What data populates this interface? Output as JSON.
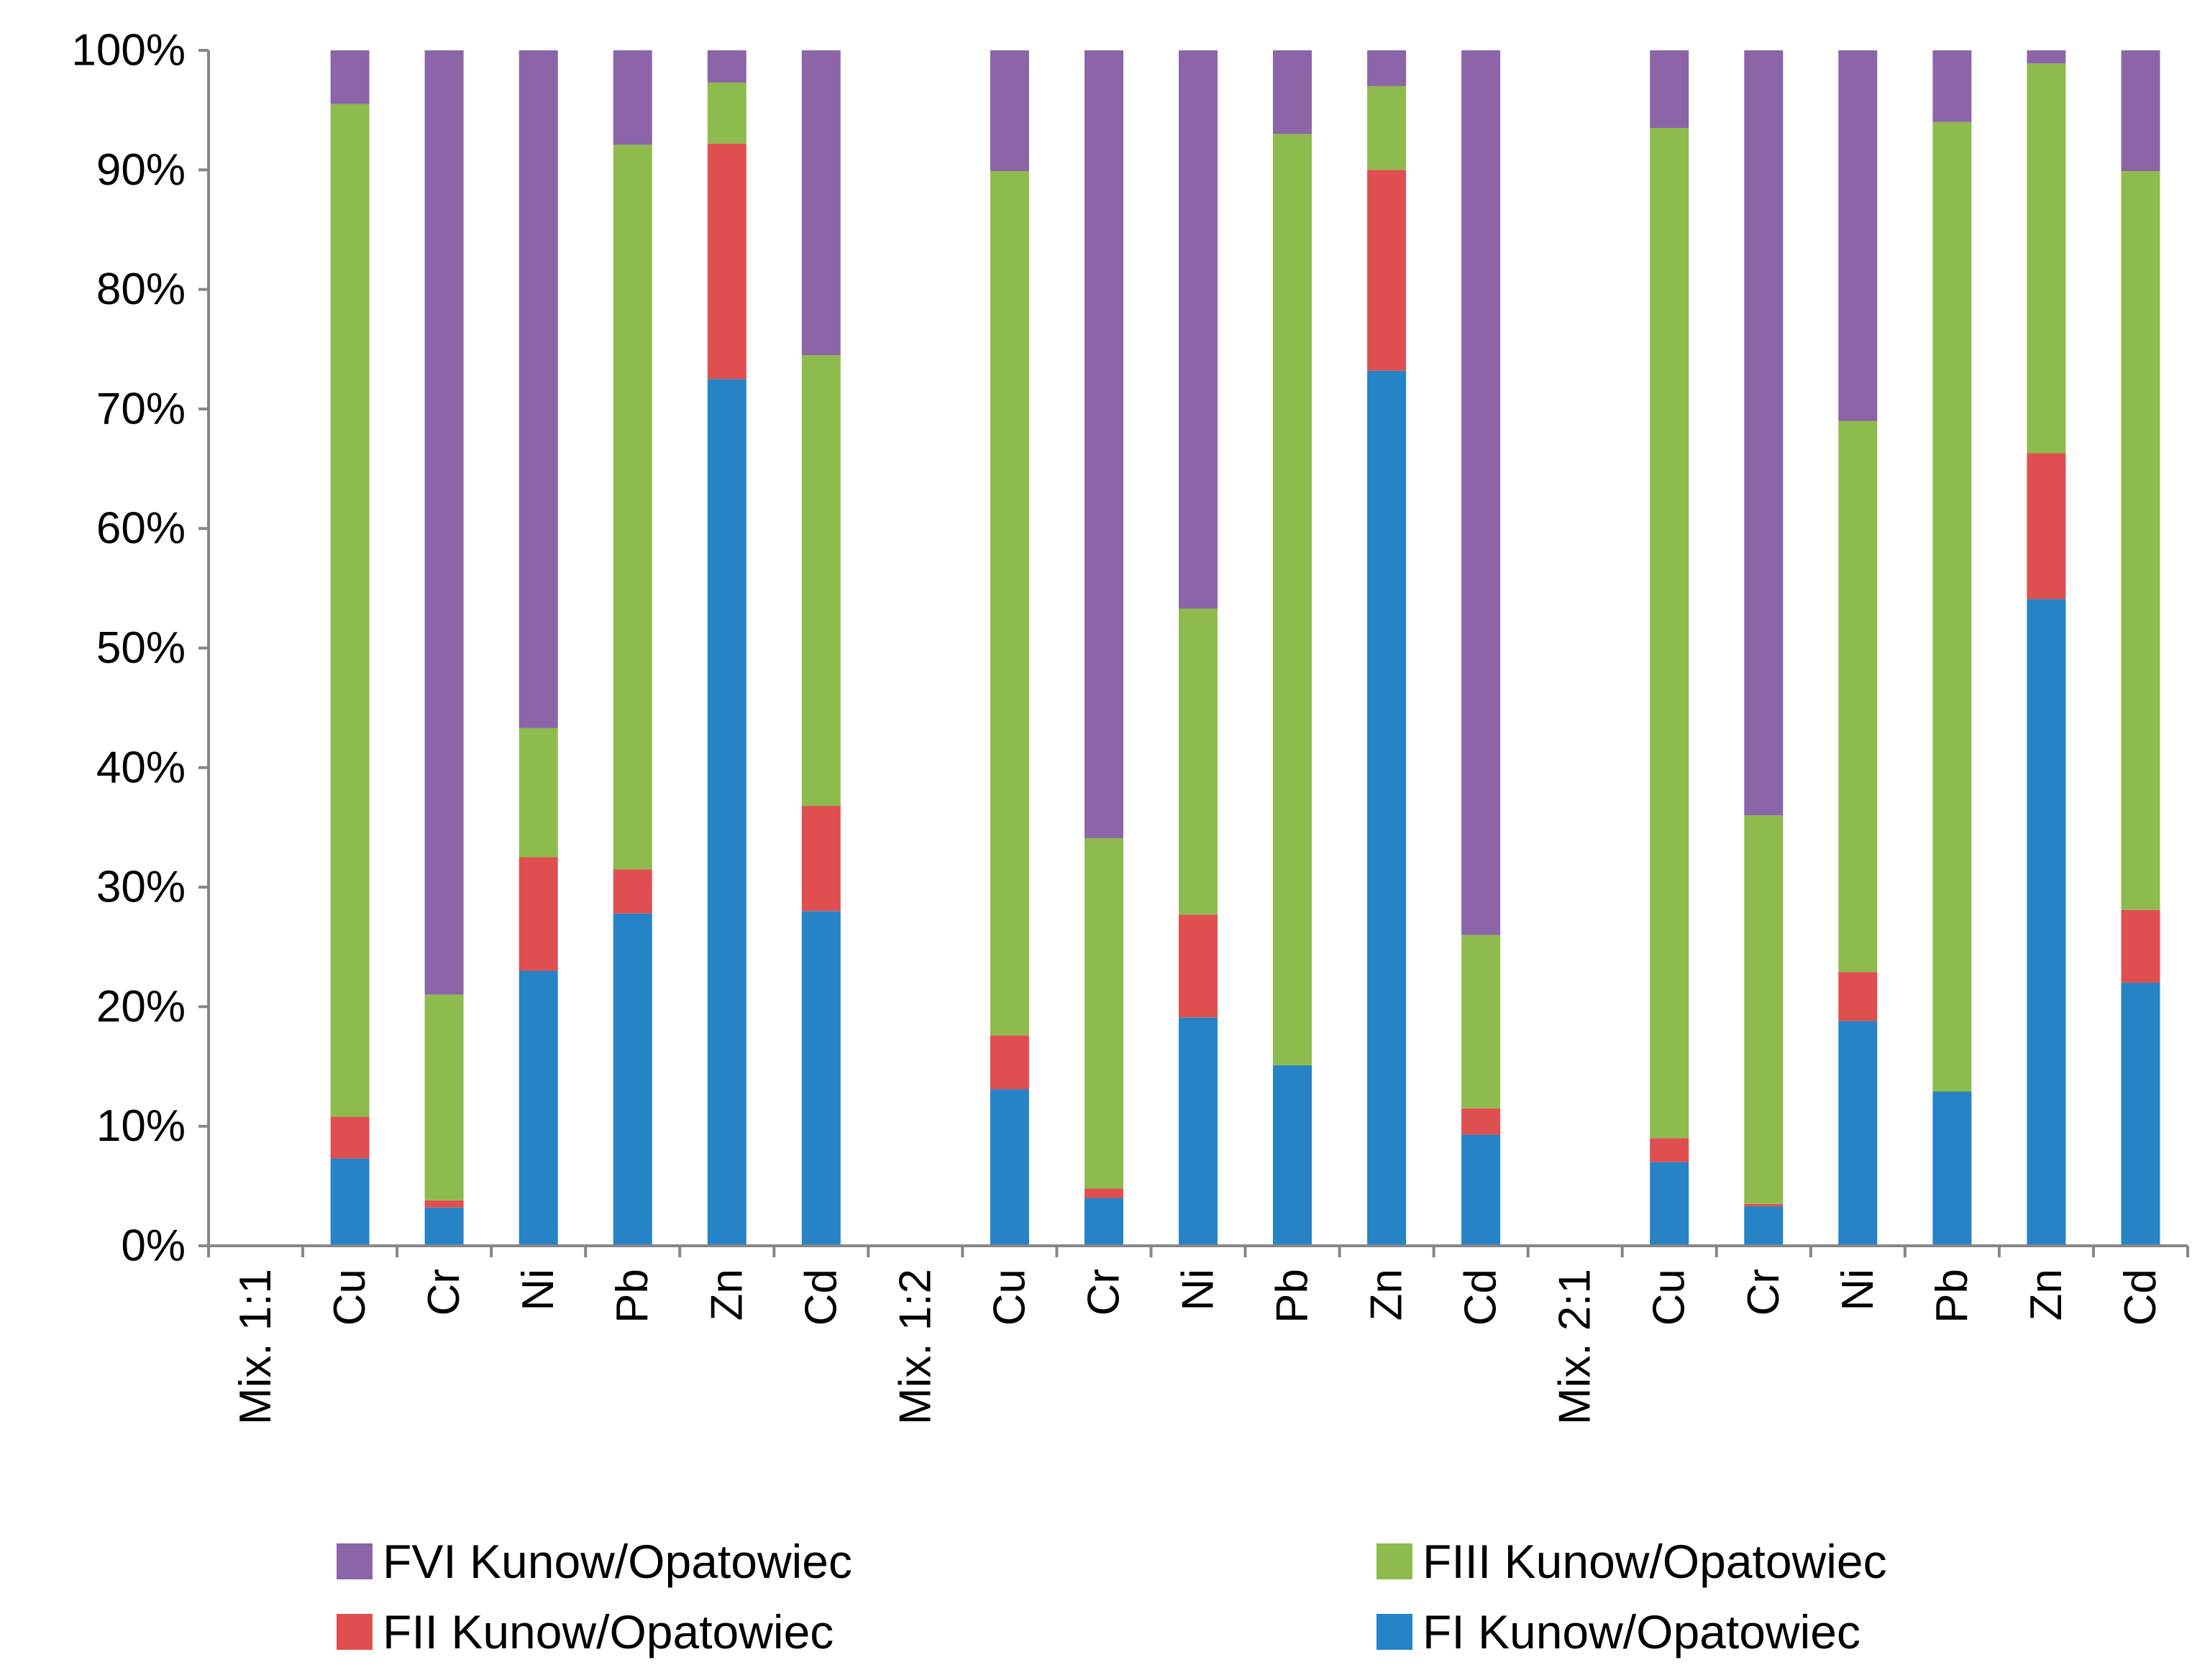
{
  "chart_data": {
    "type": "bar",
    "stacked": "percent",
    "title": "",
    "xlabel": "",
    "ylabel": "",
    "ylim": [
      0,
      100
    ],
    "yticks": [
      "0%",
      "10%",
      "20%",
      "30%",
      "40%",
      "50%",
      "60%",
      "70%",
      "80%",
      "90%",
      "100%"
    ],
    "grid": false,
    "legend_position": "bottom",
    "categories": [
      "Mix. 1:1",
      "Cu",
      "Cr",
      "Ni",
      "Pb",
      "Zn",
      "Cd",
      "Mix. 1:2",
      "Cu",
      "Cr",
      "Ni",
      "Pb",
      "Zn",
      "Cd",
      "Mix. 2:1",
      "Cu",
      "Cr",
      "Ni",
      "Pb",
      "Zn",
      "Cd"
    ],
    "series": [
      {
        "name": "FI Kunow/Opatowiec",
        "color": "#2683C6",
        "values": [
          0,
          7.3,
          3.2,
          23,
          27.8,
          72.5,
          28,
          0,
          13.1,
          4,
          19.1,
          15.1,
          73.2,
          9.3,
          0,
          7,
          3.3,
          18.8,
          12.9,
          54.1,
          22
        ]
      },
      {
        "name": "FII Kunow/Opatowiec",
        "color": "#E04F4F",
        "values": [
          0,
          3.5,
          0.6,
          9.5,
          3.7,
          19.7,
          8.8,
          0,
          4.5,
          0.8,
          8.6,
          0,
          16.8,
          2.2,
          0,
          2,
          0.2,
          4.1,
          0,
          12.2,
          6.1
        ]
      },
      {
        "name": "FIII Kunow/Opatowiec",
        "color": "#8EBB4E",
        "values": [
          0,
          84.7,
          17.2,
          10.8,
          60.6,
          5.1,
          37.7,
          0,
          72.3,
          29.3,
          25.6,
          77.9,
          7,
          14.5,
          0,
          84.5,
          32.5,
          46.1,
          81.1,
          32.6,
          61.8
        ]
      },
      {
        "name": "FVI Kunow/Opatowiec",
        "color": "#8B65A8",
        "values": [
          0,
          4.5,
          79,
          56.7,
          7.9,
          2.7,
          25.5,
          0,
          10.1,
          65.9,
          46.7,
          7,
          3,
          74,
          0,
          6.5,
          64,
          31,
          6,
          1.1,
          10.1
        ]
      }
    ],
    "legend": [
      {
        "label": "FVI Kunow/Opatowiec",
        "color": "#8B65A8"
      },
      {
        "label": "FIII Kunow/Opatowiec",
        "color": "#8EBB4E"
      },
      {
        "label": "FII Kunow/Opatowiec",
        "color": "#E04F4F"
      },
      {
        "label": "FI Kunow/Opatowiec",
        "color": "#2683C6"
      }
    ]
  }
}
